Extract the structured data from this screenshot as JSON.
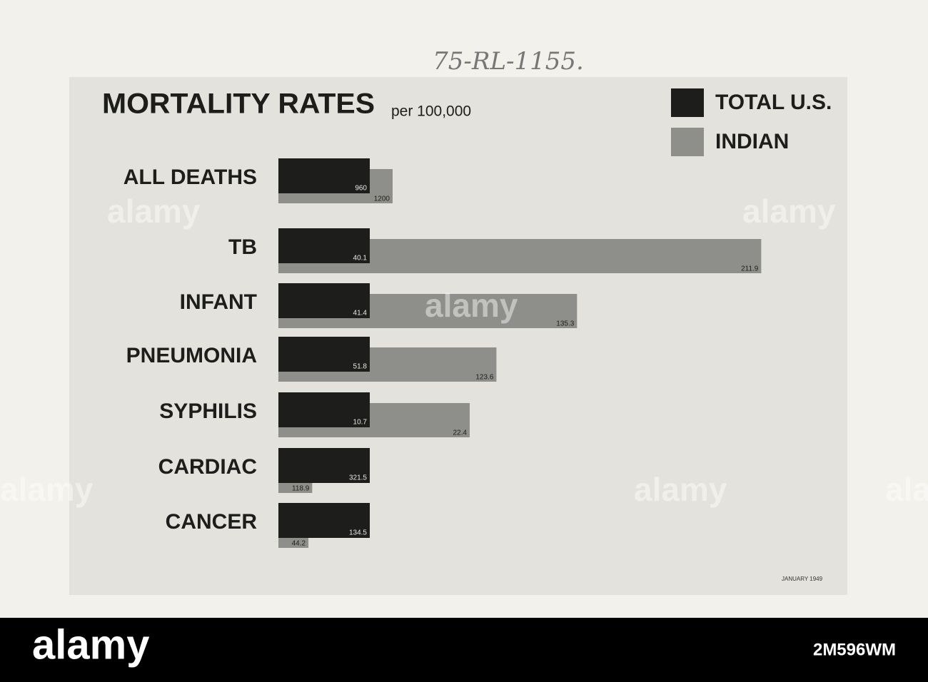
{
  "annotation": "75-RL-1155.",
  "chart_data": {
    "type": "bar",
    "orientation": "horizontal",
    "title": "MORTALITY RATES",
    "subtitle": "per 100,000",
    "categories": [
      "ALL DEATHS",
      "TB",
      "INFANT",
      "PNEUMONIA",
      "SYPHILIS",
      "CARDIAC",
      "CANCER"
    ],
    "series": [
      {
        "name": "TOTAL U.S.",
        "color": "#1d1d1b",
        "values": [
          960,
          40.1,
          41.4,
          51.8,
          10.7,
          321.5,
          134.5
        ]
      },
      {
        "name": "INDIAN",
        "color": "#8e8e8a",
        "values": [
          1200,
          211.9,
          135.3,
          123.6,
          22.4,
          118.9,
          44.2
        ]
      }
    ],
    "legend": "top-right",
    "note": "JANUARY 1949"
  },
  "watermark": "alamy",
  "image_id": "2M596WM"
}
